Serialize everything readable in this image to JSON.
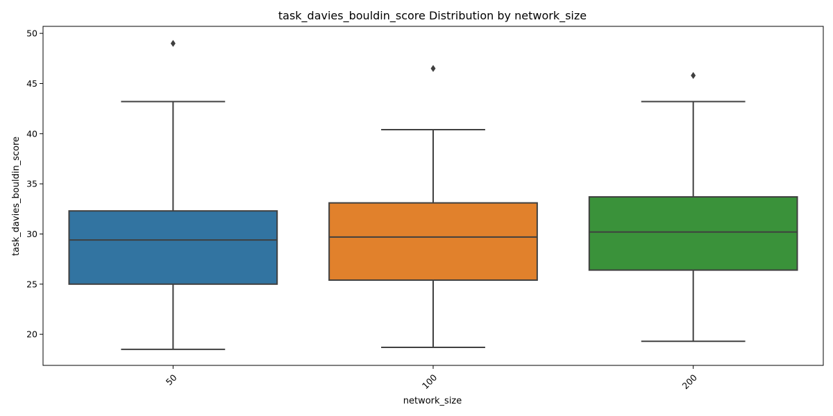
{
  "chart_data": {
    "type": "box",
    "title": "task_davies_bouldin_score Distribution by network_size",
    "xlabel": "network_size",
    "ylabel": "task_davies_bouldin_score",
    "ylim": [
      16.9,
      50.7
    ],
    "yticks": [
      20,
      25,
      30,
      35,
      40,
      45,
      50
    ],
    "grid": false,
    "legend": "none",
    "categories": [
      "50",
      "100",
      "200"
    ],
    "boxes": [
      {
        "category": "50",
        "whisker_low": 18.5,
        "q1": 25.0,
        "median": 29.4,
        "q3": 32.3,
        "whisker_high": 43.2,
        "outliers": [
          49.0
        ],
        "color": "#3274a1"
      },
      {
        "category": "100",
        "whisker_low": 18.7,
        "q1": 25.4,
        "median": 29.7,
        "q3": 33.1,
        "whisker_high": 40.4,
        "outliers": [
          46.5
        ],
        "color": "#e1812c"
      },
      {
        "category": "200",
        "whisker_low": 19.3,
        "q1": 26.4,
        "median": 30.2,
        "q3": 33.7,
        "whisker_high": 43.2,
        "outliers": [
          45.8
        ],
        "color": "#3a923a"
      }
    ],
    "line_color": "#3f3f3f"
  }
}
